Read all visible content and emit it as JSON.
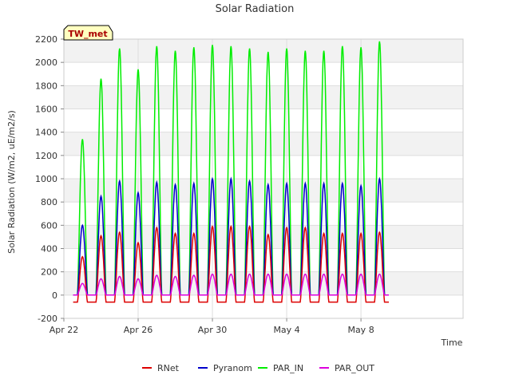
{
  "chart_data": {
    "type": "line",
    "title": "Solar Radiation",
    "site_badge": "TW_met",
    "xlabel": "Time",
    "ylabel": "Solar Radiation (W/m2, uE/m2/s)",
    "xlim": [
      0,
      21.5
    ],
    "ylim": [
      -200,
      2200
    ],
    "yticks": [
      -200,
      0,
      200,
      400,
      600,
      800,
      1000,
      1200,
      1400,
      1600,
      1800,
      2000,
      2200
    ],
    "xticks": [
      {
        "value": 0,
        "label": "Apr 22"
      },
      {
        "value": 4,
        "label": "Apr 26"
      },
      {
        "value": 8,
        "label": "Apr 30"
      },
      {
        "value": 12,
        "label": "May 4"
      },
      {
        "value": 16,
        "label": "May 8"
      }
    ],
    "grid": true,
    "legend_position": "bottom",
    "series": [
      {
        "name": "RNet",
        "color": "#dd0000",
        "night_value": -60,
        "daily_peaks": [
          330,
          510,
          540,
          450,
          580,
          530,
          530,
          590,
          590,
          590,
          520,
          580,
          580,
          530,
          530,
          530,
          540
        ]
      },
      {
        "name": "Pyranom",
        "color": "#0000cc",
        "night_value": 0,
        "daily_peaks": [
          600,
          850,
          980,
          880,
          970,
          950,
          960,
          1000,
          1000,
          980,
          950,
          960,
          960,
          960,
          960,
          940,
          1000
        ]
      },
      {
        "name": "PAR_IN",
        "color": "#00ee00",
        "night_value": 0,
        "daily_peaks": [
          1340,
          1860,
          2120,
          1940,
          2140,
          2100,
          2130,
          2150,
          2140,
          2120,
          2090,
          2120,
          2100,
          2100,
          2140,
          2130,
          2180
        ]
      },
      {
        "name": "PAR_OUT",
        "color": "#dd00dd",
        "night_value": 0,
        "daily_peaks": [
          100,
          140,
          160,
          140,
          170,
          160,
          170,
          180,
          180,
          180,
          180,
          180,
          180,
          180,
          180,
          180,
          180
        ]
      }
    ]
  }
}
